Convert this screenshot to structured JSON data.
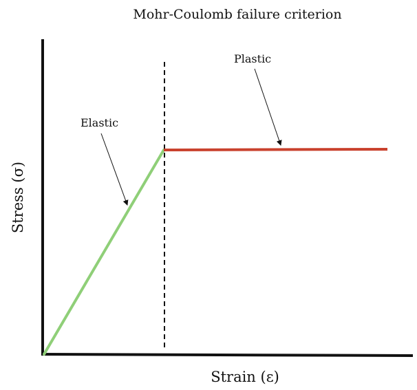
{
  "title": "Mohr-Coulomb failure criterion",
  "axes": {
    "x_label": "Strain (ε)",
    "y_label": "Stress (σ)"
  },
  "regions": {
    "elastic_label": "Elastic",
    "plastic_label": "Plastic"
  },
  "colors": {
    "elastic_line": "#8fcf78",
    "plastic_line": "#c9412d",
    "axis": "#111111",
    "yield_divider": "#111111"
  }
}
